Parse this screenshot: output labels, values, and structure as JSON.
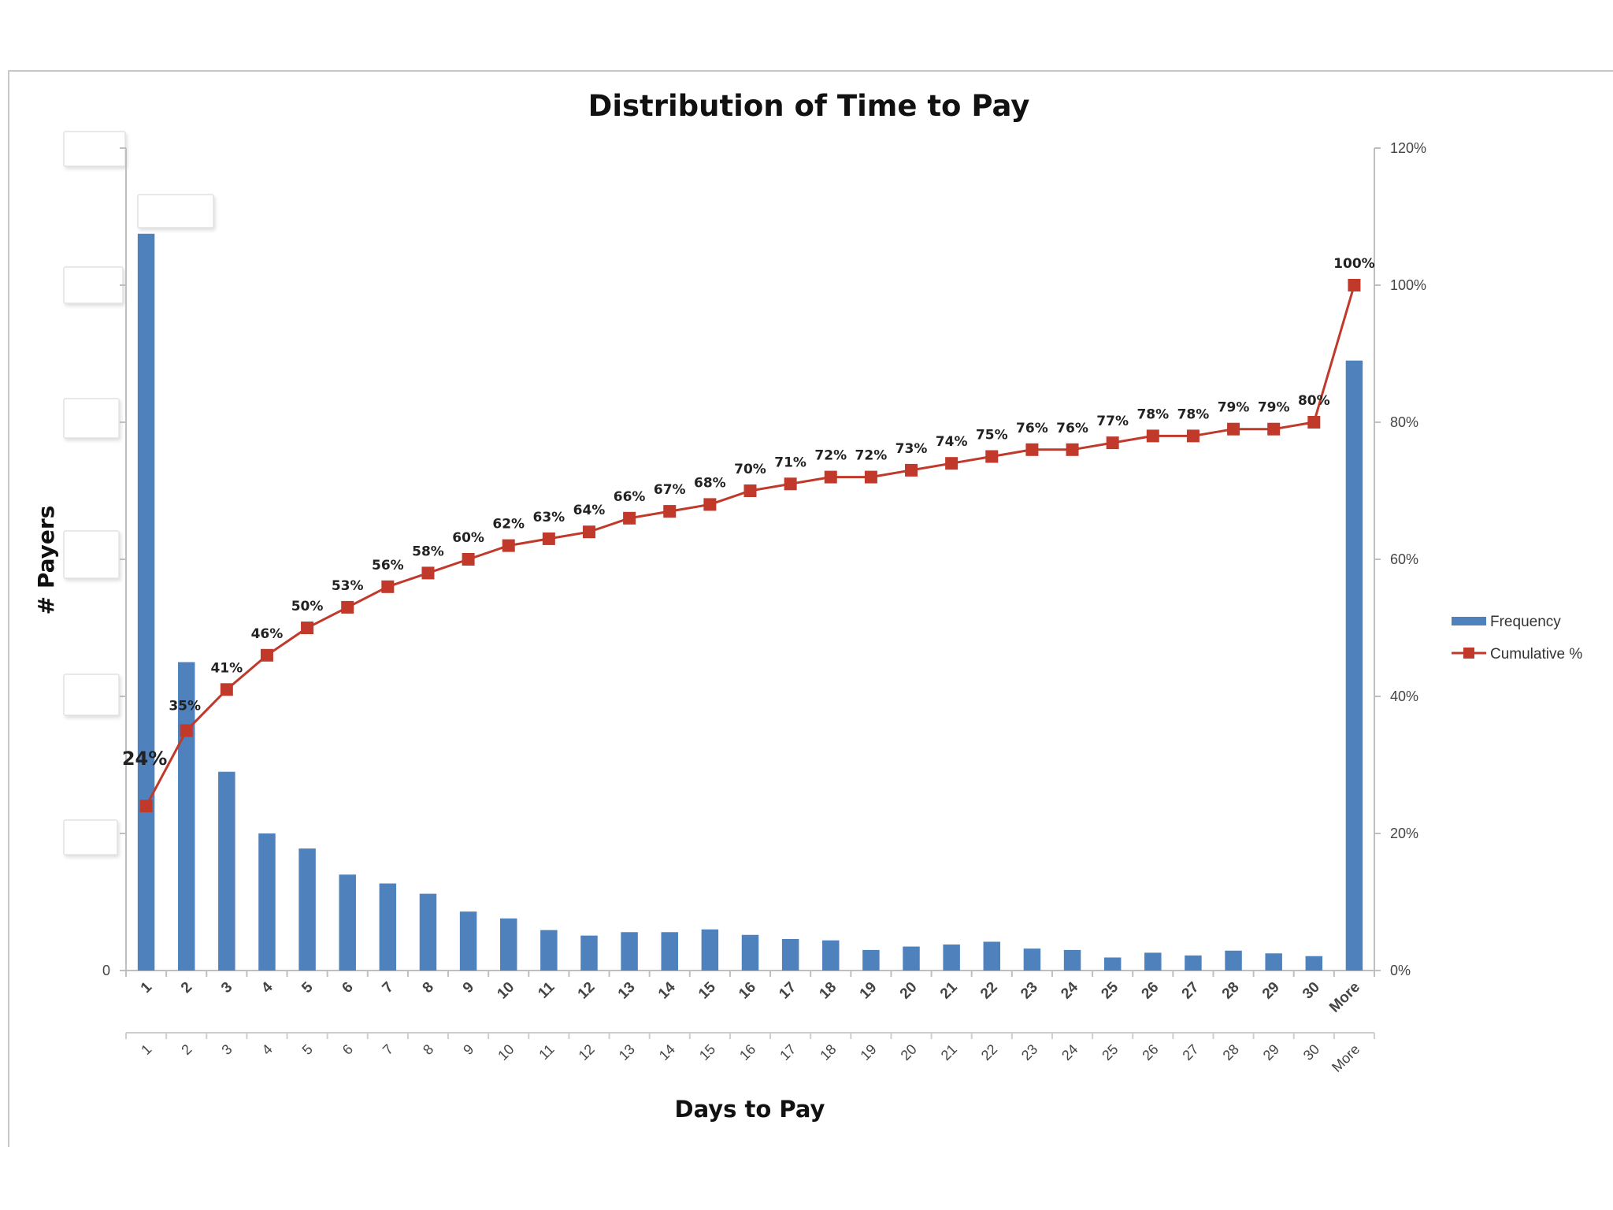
{
  "chart_data": {
    "type": "bar",
    "title": "Distribution of Time to Pay",
    "xlabel": "Days to Pay",
    "ylabel": "# Payers",
    "categories": [
      "1",
      "2",
      "3",
      "4",
      "5",
      "6",
      "7",
      "8",
      "9",
      "10",
      "11",
      "12",
      "13",
      "14",
      "15",
      "16",
      "17",
      "18",
      "19",
      "20",
      "21",
      "22",
      "23",
      "24",
      "25",
      "26",
      "27",
      "28",
      "29",
      "30",
      "More"
    ],
    "secondary_axis": {
      "ylim": [
        0,
        120
      ],
      "ticks": [
        "0%",
        "20%",
        "40%",
        "60%",
        "80%",
        "100%",
        "120%"
      ]
    },
    "primary_axis": {
      "ylim": [
        0,
        1.2
      ],
      "visible_ticks": [
        "0"
      ]
    },
    "grid": false,
    "legend_position": "right",
    "colors": {
      "frequency": "#4f81bd",
      "cumulative": "#c0392b"
    },
    "series": [
      {
        "name": "Frequency",
        "kind": "bar",
        "axis": "primary",
        "values": [
          1.075,
          0.45,
          0.29,
          0.2,
          0.178,
          0.14,
          0.127,
          0.112,
          0.086,
          0.076,
          0.059,
          0.051,
          0.056,
          0.056,
          0.06,
          0.052,
          0.046,
          0.044,
          0.03,
          0.035,
          0.038,
          0.042,
          0.032,
          0.03,
          0.019,
          0.026,
          0.022,
          0.029,
          0.025,
          0.021,
          0.89
        ]
      },
      {
        "name": "Cumulative %",
        "kind": "line",
        "axis": "secondary",
        "values": [
          24,
          35,
          41,
          46,
          50,
          53,
          56,
          58,
          60,
          62,
          63,
          64,
          66,
          67,
          68,
          70,
          71,
          72,
          72,
          73,
          74,
          75,
          76,
          76,
          77,
          78,
          78,
          79,
          79,
          80,
          100
        ],
        "labels": [
          "24%",
          "35%",
          "41%",
          "46%",
          "50%",
          "53%",
          "56%",
          "58%",
          "60%",
          "62%",
          "63%",
          "64%",
          "66%",
          "67%",
          "68%",
          "70%",
          "71%",
          "72%",
          "72%",
          "73%",
          "74%",
          "75%",
          "76%",
          "76%",
          "77%",
          "78%",
          "78%",
          "79%",
          "79%",
          "80%",
          "100%"
        ]
      }
    ]
  }
}
